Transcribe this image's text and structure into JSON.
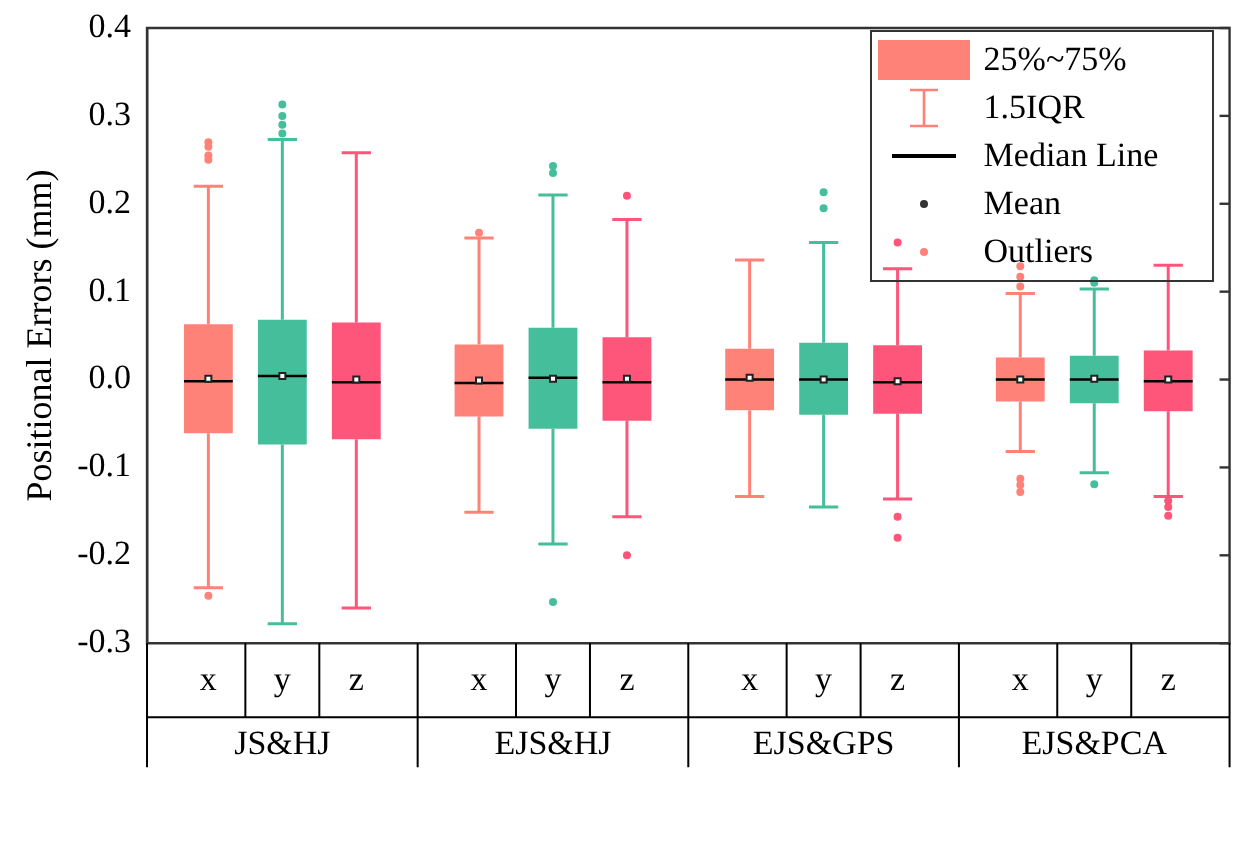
{
  "chart_data": {
    "type": "box",
    "ylabel": "Positional Errors (mm)",
    "categories": [
      "JS&HJ",
      "EJS&HJ",
      "EJS&GPS",
      "EJS&PCA"
    ],
    "ylim": [
      -0.3,
      0.4
    ],
    "yticks": [
      -0.3,
      -0.2,
      -0.1,
      {
        "value": 0,
        "label": "0.0"
      },
      0.1,
      0.2,
      0.3,
      0.4
    ],
    "grid": false,
    "annotations": [
      "25%~75%",
      "1.5IQR",
      "Median Line",
      "Mean",
      "Outliers"
    ],
    "series": [
      {
        "name": "x",
        "color": "#ff8278",
        "boxes": [
          {
            "low": -0.237,
            "q1": -0.061,
            "median": -0.002,
            "q3": 0.063,
            "high": 0.22,
            "mean": 0.001,
            "outliers": [
              0.27,
              0.265,
              0.255,
              0.25,
              -0.246
            ]
          },
          {
            "low": -0.151,
            "q1": -0.042,
            "median": -0.004,
            "q3": 0.04,
            "high": 0.161,
            "mean": -0.001,
            "outliers": [
              0.167
            ]
          },
          {
            "low": -0.133,
            "q1": -0.035,
            "median": 0.0,
            "q3": 0.035,
            "high": 0.136,
            "mean": 0.002
          },
          {
            "low": -0.082,
            "q1": -0.025,
            "median": 0.0,
            "q3": 0.025,
            "high": 0.098,
            "mean": 0.0,
            "outliers": [
              0.129,
              0.117,
              0.106,
              -0.113,
              -0.12,
              -0.128
            ]
          }
        ]
      },
      {
        "name": "y",
        "color": "#45bf9b",
        "boxes": [
          {
            "low": -0.278,
            "q1": -0.074,
            "median": 0.004,
            "q3": 0.068,
            "high": 0.273,
            "mean": 0.004,
            "outliers": [
              0.313,
              0.3,
              0.29,
              0.28
            ]
          },
          {
            "low": -0.187,
            "q1": -0.056,
            "median": 0.002,
            "q3": 0.059,
            "high": 0.21,
            "mean": 0.001,
            "outliers": [
              0.243,
              0.235,
              -0.253
            ]
          },
          {
            "low": -0.145,
            "q1": -0.04,
            "median": 0.0,
            "q3": 0.042,
            "high": 0.156,
            "mean": 0.0,
            "outliers": [
              0.213,
              0.195
            ]
          },
          {
            "low": -0.106,
            "q1": -0.027,
            "median": 0.0,
            "q3": 0.027,
            "high": 0.103,
            "mean": 0.001,
            "outliers": [
              0.113,
              0.11,
              -0.119
            ]
          }
        ]
      },
      {
        "name": "z",
        "color": "#fe557a",
        "boxes": [
          {
            "low": -0.26,
            "q1": -0.068,
            "median": -0.003,
            "q3": 0.065,
            "high": 0.258,
            "mean": 0.0
          },
          {
            "low": -0.156,
            "q1": -0.047,
            "median": -0.003,
            "q3": 0.048,
            "high": 0.182,
            "mean": 0.001,
            "outliers": [
              0.209,
              -0.2
            ]
          },
          {
            "low": -0.136,
            "q1": -0.039,
            "median": -0.003,
            "q3": 0.039,
            "high": 0.126,
            "mean": -0.002,
            "outliers": [
              0.156,
              -0.156,
              -0.18
            ]
          },
          {
            "low": -0.133,
            "q1": -0.036,
            "median": -0.002,
            "q3": 0.033,
            "high": 0.13,
            "mean": 0.0,
            "outliers": [
              -0.138,
              -0.145,
              -0.155
            ]
          }
        ]
      }
    ]
  }
}
